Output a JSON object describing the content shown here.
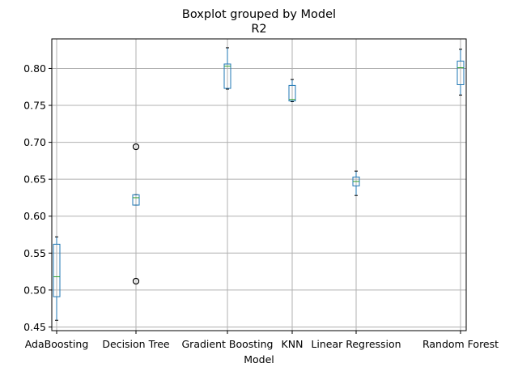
{
  "chart_data": {
    "type": "boxplot",
    "title": "Boxplot grouped by Model",
    "subtitle": "R2",
    "xlabel": "Model",
    "ylabel": "",
    "ylim": [
      0.445,
      0.84
    ],
    "yticks": [
      "0.45",
      "0.50",
      "0.55",
      "0.60",
      "0.65",
      "0.70",
      "0.75",
      "0.80"
    ],
    "grid": true,
    "colors": {
      "box": "#1f77b4",
      "median": "#2ca02c",
      "whisker": "#000000",
      "flier": "#000000"
    },
    "categories": [
      "AdaBoosting",
      "Decision Tree",
      "Gradient Boosting",
      "KNN",
      "Linear Regression",
      "Random Forest"
    ],
    "boxes": [
      {
        "category": "AdaBoosting",
        "whislo": 0.459,
        "q1": 0.491,
        "med": 0.518,
        "q3": 0.562,
        "whishi": 0.572,
        "fliers": []
      },
      {
        "category": "Decision Tree",
        "whislo": 0.615,
        "q1": 0.615,
        "med": 0.625,
        "q3": 0.629,
        "whishi": 0.629,
        "fliers": [
          0.694,
          0.512
        ]
      },
      {
        "category": "Gradient Boosting",
        "whislo": 0.772,
        "q1": 0.773,
        "med": 0.803,
        "q3": 0.806,
        "whishi": 0.828,
        "fliers": []
      },
      {
        "category": "KNN",
        "whislo": 0.755,
        "q1": 0.756,
        "med": 0.758,
        "q3": 0.777,
        "whishi": 0.785,
        "fliers": []
      },
      {
        "category": "Linear Regression",
        "whislo": 0.628,
        "q1": 0.641,
        "med": 0.647,
        "q3": 0.653,
        "whishi": 0.661,
        "fliers": []
      },
      {
        "category": "Random Forest",
        "whislo": 0.764,
        "q1": 0.778,
        "med": 0.801,
        "q3": 0.81,
        "whishi": 0.826,
        "fliers": []
      }
    ]
  }
}
